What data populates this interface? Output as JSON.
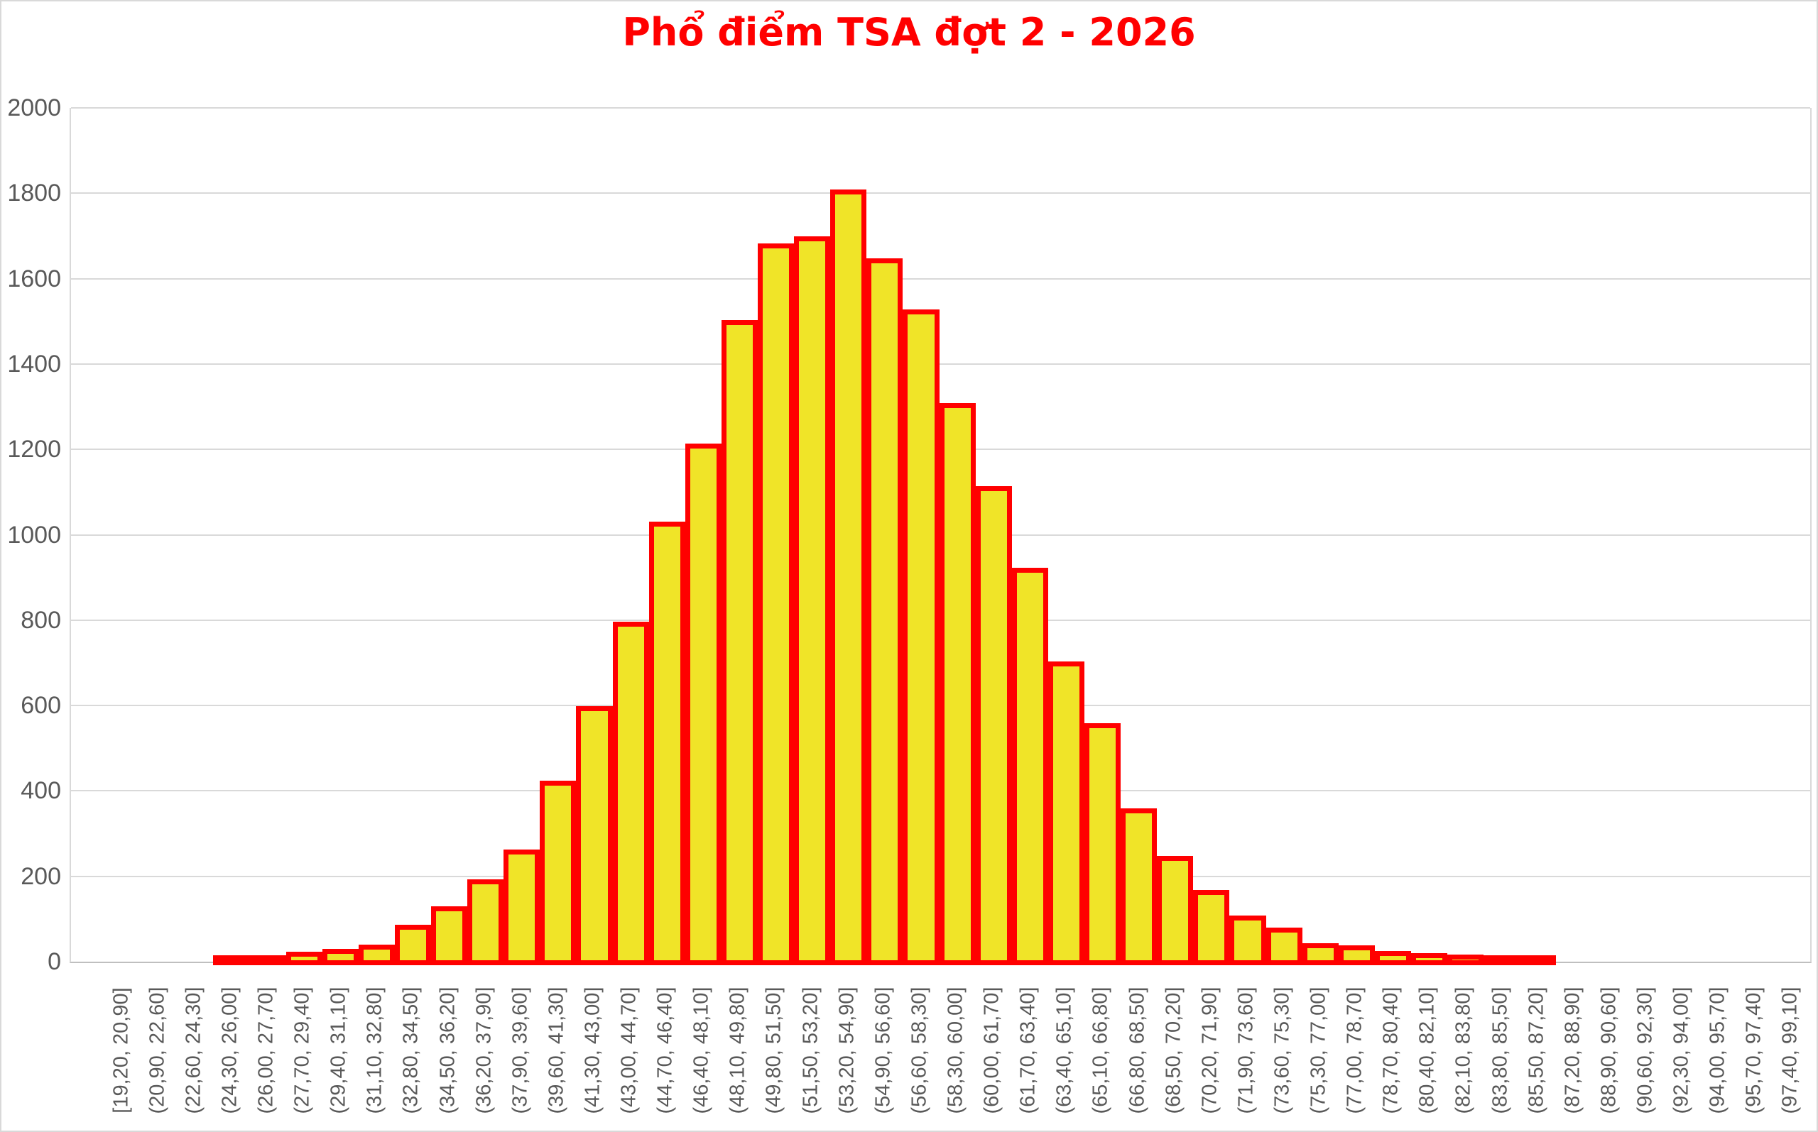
{
  "chart_data": {
    "type": "bar",
    "subtype": "histogram",
    "title": "Phổ điểm TSA đợt 2 - 2026",
    "xlabel": "",
    "ylabel": "",
    "ylim": [
      0,
      2000
    ],
    "y_ticks": [
      0,
      200,
      400,
      600,
      800,
      1000,
      1200,
      1400,
      1600,
      1800,
      2000
    ],
    "grid": true,
    "legend": "none",
    "bar_gap": 0,
    "categories": [
      "[19,20, 20,90]",
      "(20,90, 22,60]",
      "(22,60, 24,30]",
      "(24,30, 26,00]",
      "(26,00, 27,70]",
      "(27,70, 29,40]",
      "(29,40, 31,10]",
      "(31,10, 32,80]",
      "(32,80, 34,50]",
      "(34,50, 36,20]",
      "(36,20, 37,90]",
      "(37,90, 39,60]",
      "(39,60, 41,30]",
      "(41,30, 43,00]",
      "(43,00, 44,70]",
      "(44,70, 46,40]",
      "(46,40, 48,10]",
      "(48,10, 49,80]",
      "(49,80, 51,50]",
      "(51,50, 53,20]",
      "(53,20, 54,90]",
      "(54,90, 56,60]",
      "(56,60, 58,30]",
      "(58,30, 60,00]",
      "(60,00, 61,70]",
      "(61,70, 63,40]",
      "(63,40, 65,10]",
      "(65,10, 66,80]",
      "(66,80, 68,50]",
      "(68,50, 70,20]",
      "(70,20, 71,90]",
      "(71,90, 73,60]",
      "(73,60, 75,30]",
      "(75,30, 77,00]",
      "(77,00, 78,70]",
      "(78,70, 80,40]",
      "(80,40, 82,10]",
      "(82,10, 83,80]",
      "(83,80, 85,50]",
      "(85,50, 87,20]",
      "(87,20, 88,90]",
      "(88,90, 90,60]",
      "(90,60, 92,30]",
      "(92,30, 94,00]",
      "(94,00, 95,70]",
      "(95,70, 97,40]",
      "(97,40, 99,10]"
    ],
    "values": [
      0,
      0,
      0,
      3,
      6,
      15,
      22,
      32,
      78,
      122,
      185,
      255,
      415,
      590,
      788,
      1022,
      1206,
      1495,
      1675,
      1690,
      1800,
      1640,
      1520,
      1300,
      1105,
      915,
      695,
      550,
      350,
      240,
      160,
      100,
      72,
      35,
      30,
      16,
      12,
      9,
      6,
      4,
      0,
      0,
      0,
      0,
      0,
      0,
      0
    ]
  },
  "style": {
    "title_color": "#ff0000",
    "bar_fill": "#f0e428",
    "bar_border": "#ff0000",
    "gridline_color": "#d9d9d9",
    "axis_line_color": "#bfbfbf",
    "tick_label_color": "#595959",
    "background": "#ffffff"
  }
}
